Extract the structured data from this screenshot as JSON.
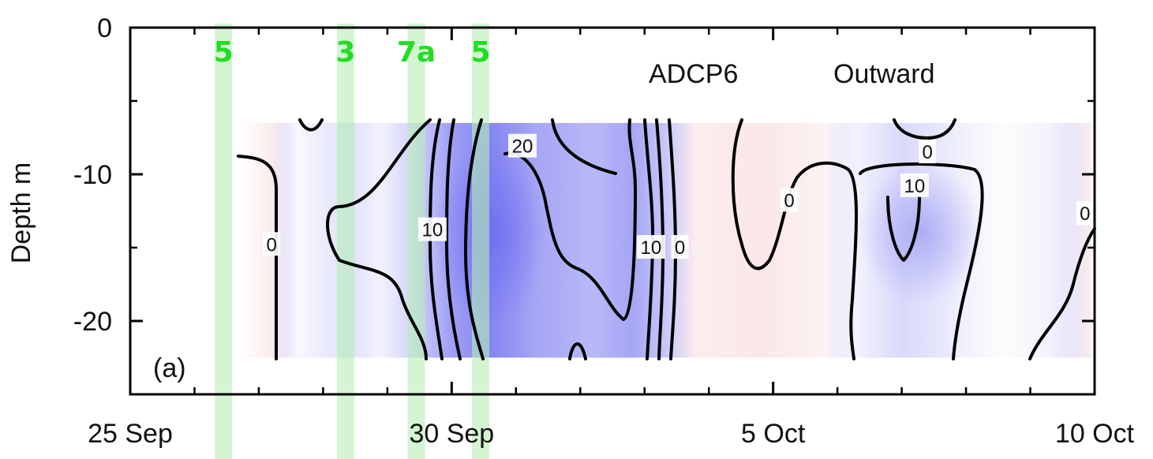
{
  "chart_data": {
    "type": "heatmap",
    "panel_label": "(a)",
    "title_station": "ADCP6",
    "title_component": "Outward",
    "ylabel": "Depth m",
    "xlabel": "",
    "xlim": [
      0,
      15
    ],
    "ylim": [
      -25,
      0
    ],
    "x_ticks": [
      {
        "value": 0,
        "label": "25 Sep"
      },
      {
        "value": 5,
        "label": "30 Sep"
      },
      {
        "value": 10,
        "label": "5 Oct"
      },
      {
        "value": 15,
        "label": "10 Oct"
      }
    ],
    "x_minor_ticks": [
      1,
      2,
      3,
      4,
      6,
      7,
      8,
      9,
      11,
      12,
      13,
      14
    ],
    "y_ticks": [
      {
        "value": 0,
        "label": "0"
      },
      {
        "value": -10,
        "label": "-10"
      },
      {
        "value": -20,
        "label": "-20"
      }
    ],
    "y_minor_ticks": [
      -5,
      -15,
      -25
    ],
    "data_depth_range": [
      -22.5,
      -6.5
    ],
    "data_time_range": [
      1.7,
      14.95
    ],
    "contour_levels": [
      0,
      10,
      20
    ],
    "contour_labels": [
      {
        "text": "0",
        "x": 2.2,
        "y": -14.8
      },
      {
        "text": "10",
        "x": 4.7,
        "y": -13.8
      },
      {
        "text": "20",
        "x": 6.1,
        "y": -8.1
      },
      {
        "text": "10",
        "x": 8.1,
        "y": -15.0
      },
      {
        "text": "0",
        "x": 8.55,
        "y": -15.0
      },
      {
        "text": "0",
        "x": 10.25,
        "y": -11.8
      },
      {
        "text": "0",
        "x": 12.4,
        "y": -8.5
      },
      {
        "text": "10",
        "x": 12.2,
        "y": -10.8
      },
      {
        "text": "0",
        "x": 14.85,
        "y": -12.7
      }
    ],
    "events": [
      {
        "label": "5",
        "x": 1.45
      },
      {
        "label": "3",
        "x": 3.35
      },
      {
        "label": "7a",
        "x": 4.45
      },
      {
        "label": "5",
        "x": 5.45
      }
    ],
    "colors": {
      "positive": "#7f7ff2",
      "negative": "#f9dcdc",
      "event_band": "#b6eeb6",
      "event_label": "#22dd22",
      "contour": "#000000"
    }
  }
}
